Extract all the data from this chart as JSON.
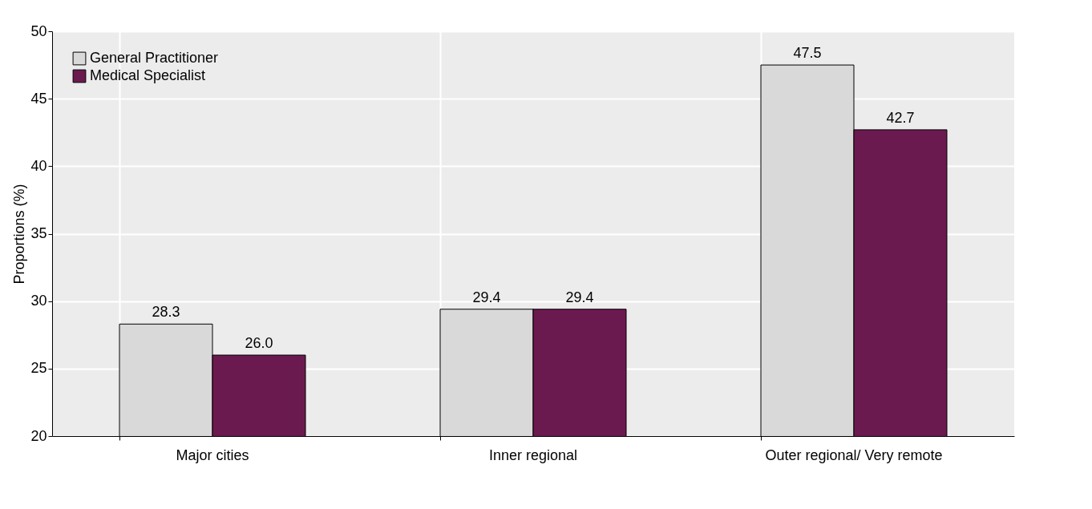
{
  "chart_data": {
    "type": "bar",
    "ylabel": "Proportions (%)",
    "categories": [
      "Major cities",
      "Inner regional",
      "Outer regional/ Very remote"
    ],
    "series": [
      {
        "name": "General Practitioner",
        "color": "#d9d9d9",
        "values": [
          28.3,
          29.4,
          47.5
        ],
        "value_labels": [
          "28.3",
          "29.4",
          "47.5"
        ]
      },
      {
        "name": "Medical Specialist",
        "color": "#6b1a4f",
        "values": [
          26.0,
          29.4,
          42.7
        ],
        "value_labels": [
          "26.0",
          "29.4",
          "42.7"
        ]
      }
    ],
    "ylim": [
      20,
      50
    ],
    "yticks": [
      20,
      25,
      30,
      35,
      40,
      45,
      50
    ],
    "grid": true,
    "legend": "top left"
  }
}
